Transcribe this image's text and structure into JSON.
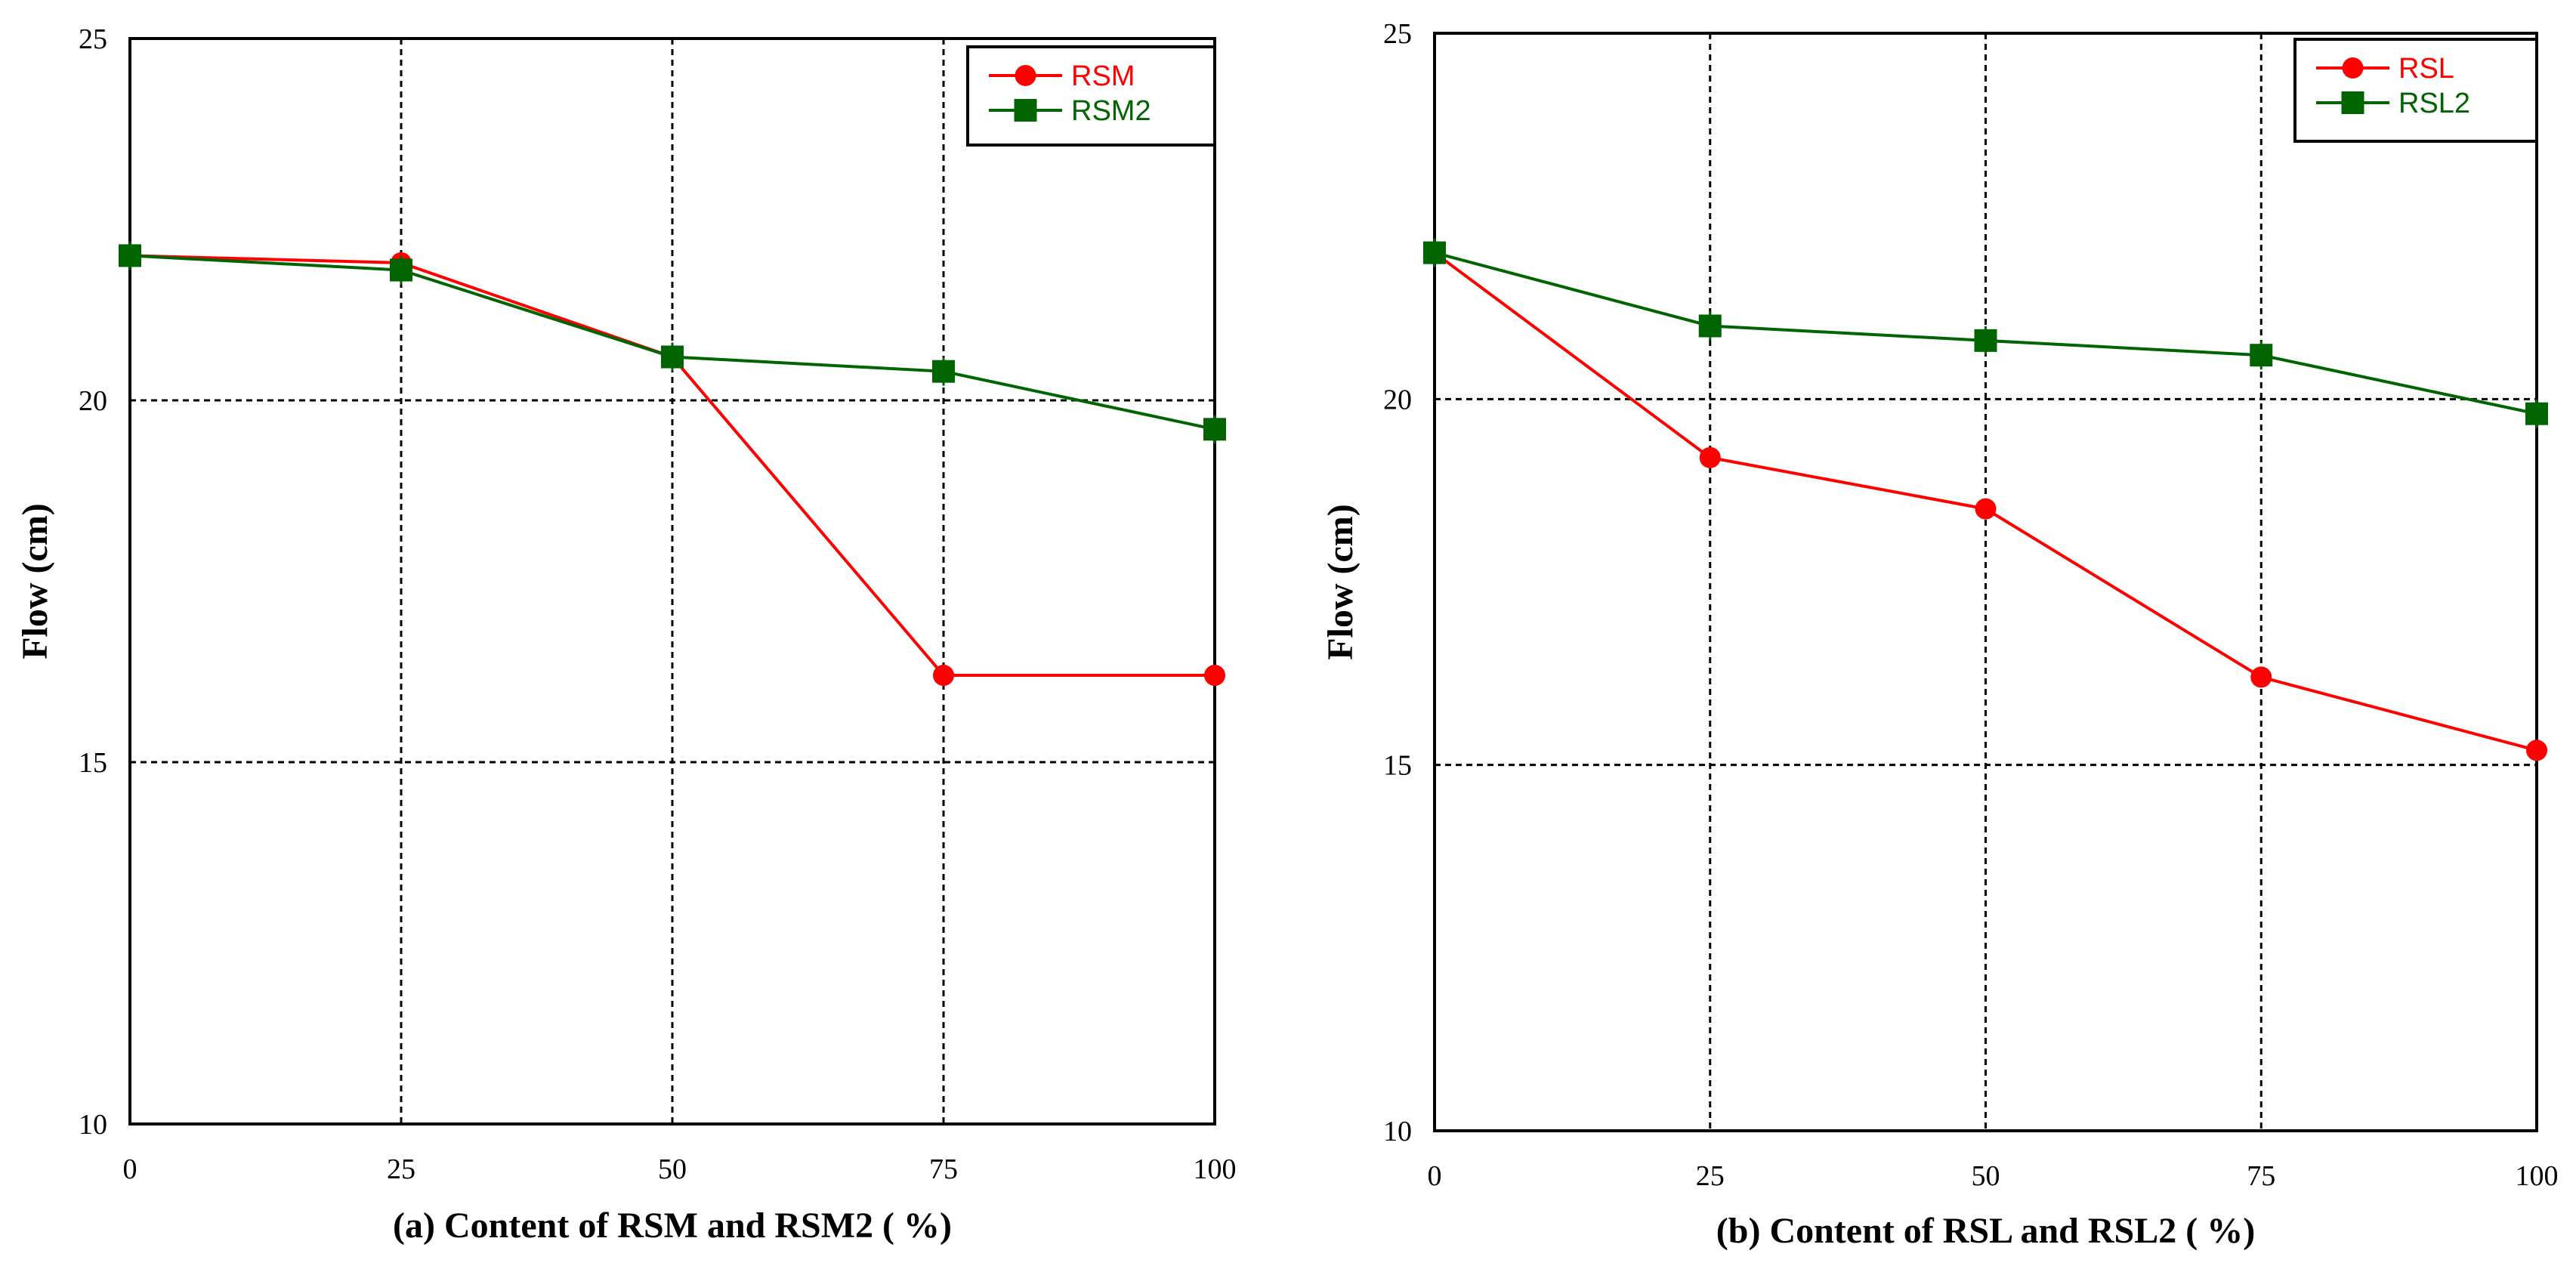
{
  "chart_data": [
    {
      "type": "line",
      "panel": "a",
      "xlabel": "(a) Content of RSM and RSM2 ( %)",
      "ylabel": "Flow (cm)",
      "x": [
        0,
        25,
        50,
        75,
        100
      ],
      "xticks": [
        "0",
        "25",
        "50",
        "75",
        "100"
      ],
      "yticks": [
        "10",
        "15",
        "20",
        "25"
      ],
      "xlim": [
        0,
        100
      ],
      "ylim": [
        10,
        25
      ],
      "grid": true,
      "legend_position": "top-right",
      "series": [
        {
          "name": "RSM",
          "color": "#ff0000",
          "marker": "circle",
          "values": [
            22.0,
            21.9,
            20.6,
            16.2,
            16.2
          ]
        },
        {
          "name": "RSM2",
          "color": "#006400",
          "marker": "square",
          "values": [
            22.0,
            21.8,
            20.6,
            20.4,
            19.6
          ]
        }
      ]
    },
    {
      "type": "line",
      "panel": "b",
      "xlabel": "(b) Content of RSL and RSL2 ( %)",
      "ylabel": "Flow (cm)",
      "x": [
        0,
        25,
        50,
        75,
        100
      ],
      "xticks": [
        "0",
        "25",
        "50",
        "75",
        "100"
      ],
      "yticks": [
        "10",
        "15",
        "20",
        "25"
      ],
      "xlim": [
        0,
        100
      ],
      "ylim": [
        10,
        25
      ],
      "grid": true,
      "legend_position": "top-right",
      "series": [
        {
          "name": "RSL",
          "color": "#ff0000",
          "marker": "circle",
          "values": [
            22.0,
            19.2,
            18.5,
            16.2,
            15.2
          ]
        },
        {
          "name": "RSL2",
          "color": "#006400",
          "marker": "square",
          "values": [
            22.0,
            21.0,
            20.8,
            20.6,
            19.8
          ]
        }
      ]
    }
  ]
}
